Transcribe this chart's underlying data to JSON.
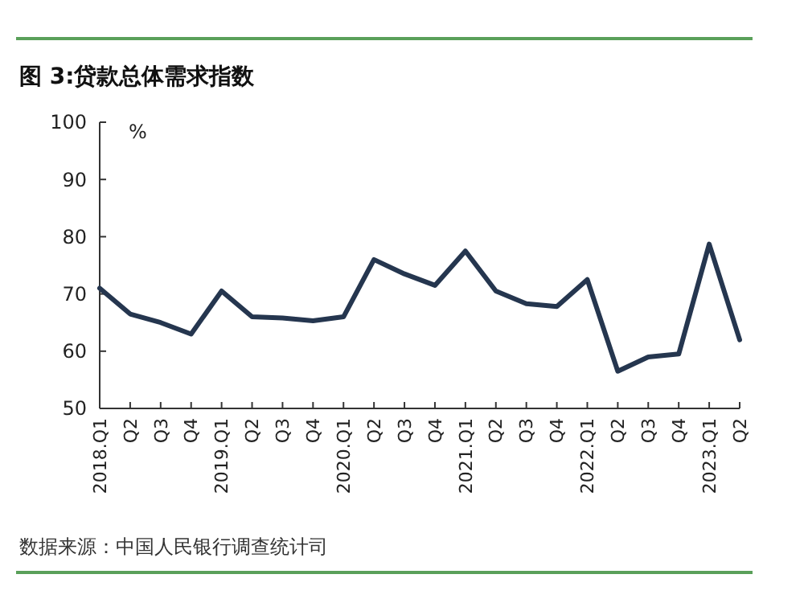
{
  "chart_data": {
    "type": "line",
    "title": "图 3:贷款总体需求指数",
    "ylabel": "%",
    "categories": [
      "2018.Q1",
      "Q2",
      "Q3",
      "Q4",
      "2019.Q1",
      "Q2",
      "Q3",
      "Q4",
      "2020.Q1",
      "Q2",
      "Q3",
      "Q4",
      "2021.Q1",
      "Q2",
      "Q3",
      "Q4",
      "2022.Q1",
      "Q2",
      "Q3",
      "Q4",
      "2023.Q1",
      "Q2"
    ],
    "series": [
      {
        "color": "#25364f",
        "values": [
          71,
          66.5,
          65,
          63,
          70.5,
          66,
          65.8,
          65.3,
          66,
          76,
          73.5,
          71.5,
          77.5,
          70.5,
          68.3,
          67.8,
          72.5,
          56.5,
          59,
          59.5,
          78.7,
          62
        ]
      }
    ],
    "ylim": [
      50,
      100
    ],
    "yticks": [
      50,
      60,
      70,
      80,
      90,
      100
    ],
    "grid": false,
    "marker": "none",
    "line_style": "solid",
    "annotations": [
      "数据来源：中国人民银行调查统计司"
    ]
  }
}
